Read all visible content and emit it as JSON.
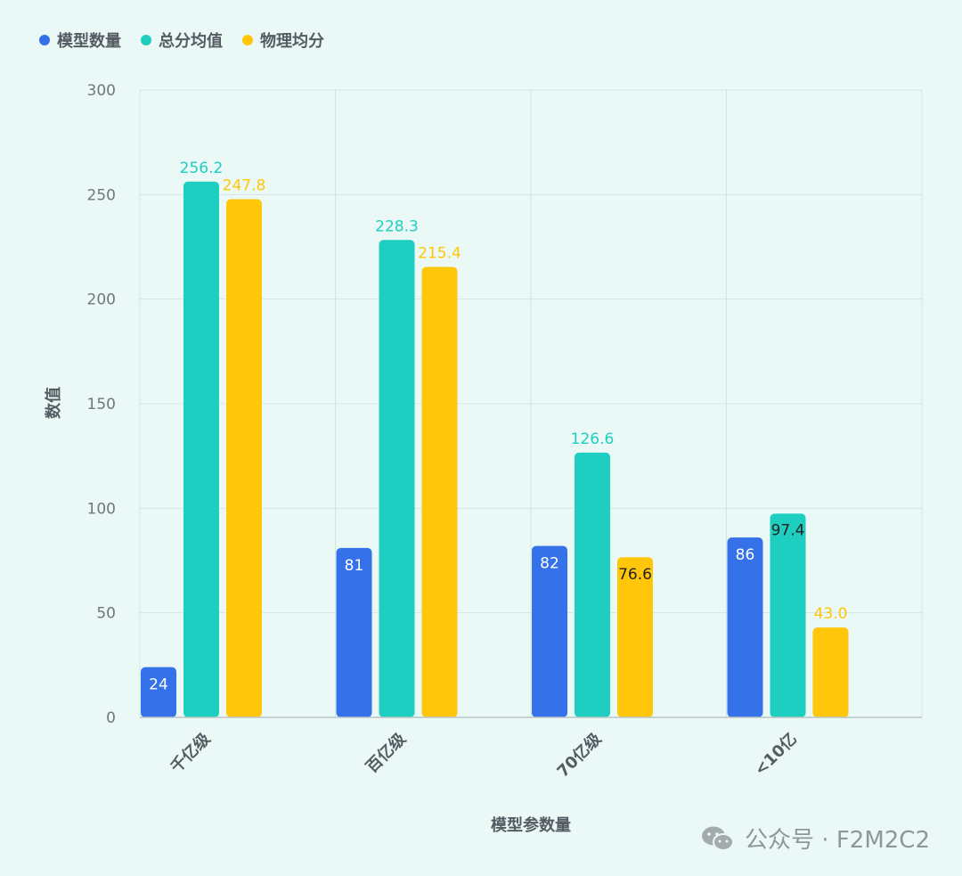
{
  "chart_data": {
    "type": "bar",
    "title": "",
    "xlabel": "模型参数量",
    "ylabel": "数值",
    "ylim": [
      0,
      300
    ],
    "yticks": [
      0,
      50,
      100,
      150,
      200,
      250,
      300
    ],
    "categories": [
      "千亿级",
      "百亿级",
      "70亿级",
      "<10亿"
    ],
    "series": [
      {
        "name": "模型数量",
        "color": "#3571e8",
        "values": [
          24,
          81,
          82,
          86
        ],
        "labels": [
          "24",
          "81",
          "82",
          "86"
        ]
      },
      {
        "name": "总分均值",
        "color": "#1ecfc1",
        "values": [
          256.2,
          228.3,
          126.6,
          97.4
        ],
        "labels": [
          "256.2",
          "228.3",
          "126.6",
          "97.4"
        ]
      },
      {
        "name": "物理均分",
        "color": "#ffc60a",
        "values": [
          247.8,
          215.4,
          76.6,
          43.0
        ],
        "labels": [
          "247.8",
          "215.4",
          "76.6",
          "43.0"
        ]
      }
    ],
    "grid": true,
    "legend_position": "top-left"
  },
  "watermark": {
    "text": "公众号 · F2M2C2",
    "icon": "wechat-icon"
  }
}
